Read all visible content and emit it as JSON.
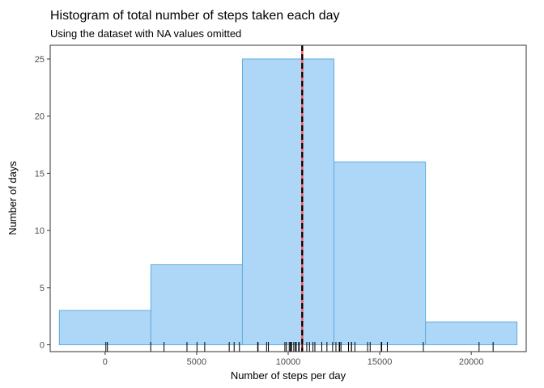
{
  "chart_data": {
    "type": "bar",
    "title": "Histogram of total number of steps taken each day",
    "subtitle": "Using the dataset with NA values omitted",
    "xlabel": "Number of steps per day",
    "ylabel": "Number of days",
    "xlim": [
      -3000,
      23000
    ],
    "ylim": [
      -0.6,
      26.2
    ],
    "x_ticks": [
      0,
      5000,
      10000,
      15000,
      20000
    ],
    "y_ticks": [
      0,
      5,
      10,
      15,
      20,
      25
    ],
    "bins": [
      {
        "start": -2500,
        "end": 2500,
        "count": 3
      },
      {
        "start": 2500,
        "end": 7500,
        "count": 7
      },
      {
        "start": 7500,
        "end": 12500,
        "count": 25
      },
      {
        "start": 12500,
        "end": 17500,
        "count": 16
      },
      {
        "start": 17500,
        "end": 22500,
        "count": 2
      }
    ],
    "rug": [
      41,
      126,
      2492,
      3219,
      4472,
      5018,
      5441,
      6778,
      7047,
      7336,
      8334,
      8355,
      8821,
      8918,
      9819,
      9900,
      10056,
      10119,
      10139,
      10183,
      10304,
      10395,
      10439,
      10571,
      10600,
      10765,
      11015,
      11162,
      11352,
      11458,
      11834,
      12116,
      12426,
      12608,
      12787,
      12811,
      12883,
      13294,
      13452,
      13460,
      13646,
      14339,
      14478,
      15084,
      15098,
      15110,
      15414,
      17382,
      20427,
      21194
    ],
    "vlines": [
      {
        "value": 10766.19,
        "color": "#ff5a5f",
        "style": "solid"
      },
      {
        "value": 10765,
        "color": "#000000",
        "style": "dashed"
      }
    ],
    "bar_fill": "#aed6f7",
    "bar_stroke": "#5dade2",
    "grid": false,
    "legend": "none"
  }
}
